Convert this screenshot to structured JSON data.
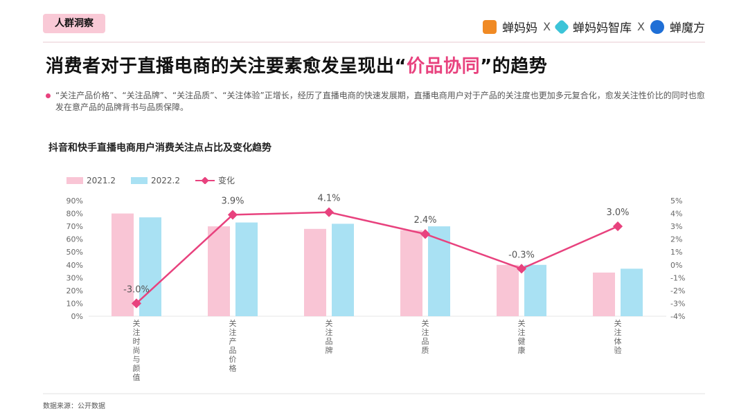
{
  "header": {
    "tag": "人群洞察",
    "logos": [
      "蝉妈妈",
      "蝉妈妈智库",
      "蝉魔方"
    ],
    "separator": "X"
  },
  "title": {
    "before": "消费者对于直播电商的关注要素愈发呈现出“",
    "highlight": "价品协同",
    "after": "”的趋势"
  },
  "description": "“关注产品价格”、“关注品牌”、“关注品质”、“关注体验”正增长，经历了直播电商的快速发展期，直播电商用户对于产品的关注度也更加多元复合化，愈发关注性价比的同时也愈发在意产品的品牌背书与品质保障。",
  "source": "数据来源：公开数据",
  "chart_data": {
    "type": "bar+line",
    "title": "抖音和快手直播电商用户消费关注点占比及变化趋势",
    "categories": [
      "关注时尚与颜值",
      "关注产品价格",
      "关注品牌",
      "关注品质",
      "关注健康",
      "关注体验"
    ],
    "series": [
      {
        "name": "2021.2",
        "type": "bar",
        "axis": "left",
        "color": "#f9c5d5",
        "values": [
          80,
          70,
          68,
          67,
          40,
          34
        ]
      },
      {
        "name": "2022.2",
        "type": "bar",
        "axis": "left",
        "color": "#a9e1f3",
        "values": [
          77,
          73,
          72,
          70,
          40,
          37
        ]
      },
      {
        "name": "变化",
        "type": "line",
        "axis": "right",
        "color": "#e8427e",
        "values": [
          -3.0,
          3.9,
          4.1,
          2.4,
          -0.3,
          3.0
        ],
        "labels": [
          "-3.0%",
          "3.9%",
          "4.1%",
          "2.4%",
          "-0.3%",
          "3.0%"
        ]
      }
    ],
    "left_axis": {
      "ylim": [
        0,
        90
      ],
      "ticks": [
        "0%",
        "10%",
        "20%",
        "30%",
        "40%",
        "50%",
        "60%",
        "70%",
        "80%",
        "90%"
      ]
    },
    "right_axis": {
      "ylim": [
        -4,
        5
      ],
      "ticks": [
        "-4%",
        "-3%",
        "-2%",
        "-1%",
        "0%",
        "1%",
        "2%",
        "3%",
        "4%",
        "5%"
      ]
    },
    "legend": "top-left",
    "grid": false
  }
}
